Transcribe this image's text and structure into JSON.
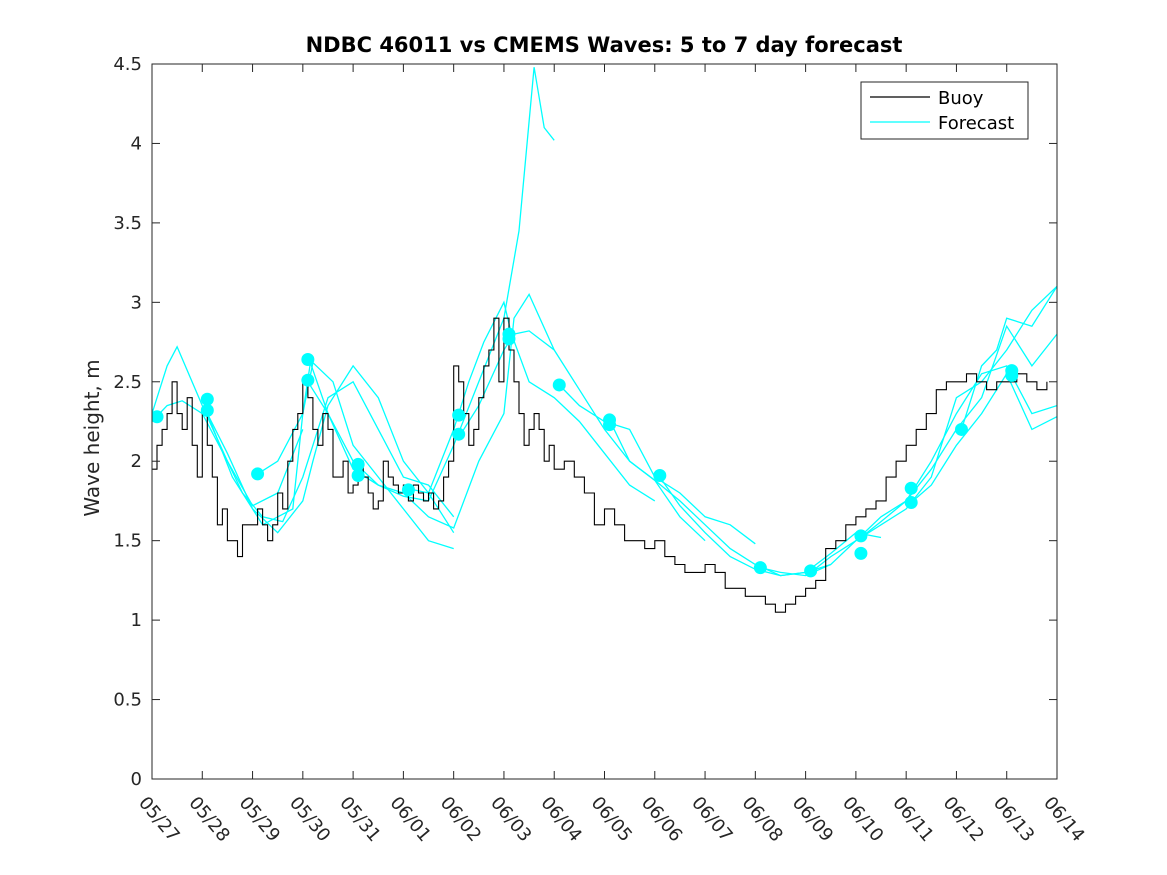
{
  "chart_data": {
    "type": "line",
    "title": "NDBC 46011 vs CMEMS Waves: 5 to 7 day forecast",
    "xlabel": "",
    "ylabel": "Wave height, m",
    "xlim": [
      "05/27",
      "06/14"
    ],
    "ylim": [
      0,
      4.5
    ],
    "y_ticks": [
      0,
      0.5,
      1,
      1.5,
      2,
      2.5,
      3,
      3.5,
      4,
      4.5
    ],
    "x_tick_labels": [
      "05/27",
      "05/28",
      "05/29",
      "05/30",
      "05/31",
      "06/01",
      "06/02",
      "06/03",
      "06/04",
      "06/05",
      "06/06",
      "06/07",
      "06/08",
      "06/09",
      "06/10",
      "06/11",
      "06/12",
      "06/13",
      "06/14"
    ],
    "grid": false,
    "legend": {
      "position": "top-right",
      "entries": [
        "Buoy",
        "Forecast"
      ]
    },
    "colors": {
      "buoy": "#000000",
      "forecast": "#00ffff",
      "axes": "#262626"
    },
    "series": [
      {
        "name": "Buoy",
        "x": [
          0,
          0.1,
          0.2,
          0.3,
          0.4,
          0.5,
          0.6,
          0.7,
          0.8,
          0.9,
          1.0,
          1.1,
          1.2,
          1.3,
          1.4,
          1.5,
          1.6,
          1.7,
          1.8,
          1.9,
          2.0,
          2.1,
          2.2,
          2.3,
          2.4,
          2.5,
          2.6,
          2.7,
          2.8,
          2.9,
          3.0,
          3.1,
          3.2,
          3.3,
          3.4,
          3.5,
          3.6,
          3.7,
          3.8,
          3.9,
          4.0,
          4.1,
          4.2,
          4.3,
          4.4,
          4.5,
          4.6,
          4.7,
          4.8,
          4.9,
          5.0,
          5.1,
          5.2,
          5.3,
          5.4,
          5.5,
          5.6,
          5.7,
          5.8,
          5.9,
          6.0,
          6.1,
          6.2,
          6.3,
          6.4,
          6.5,
          6.6,
          6.7,
          6.8,
          6.9,
          7.0,
          7.1,
          7.2,
          7.3,
          7.4,
          7.5,
          7.6,
          7.7,
          7.8,
          7.9,
          8.0,
          8.2,
          8.4,
          8.6,
          8.8,
          9.0,
          9.2,
          9.4,
          9.6,
          9.8,
          10.0,
          10.2,
          10.4,
          10.6,
          10.8,
          11.0,
          11.2,
          11.4,
          11.6,
          11.8,
          12.0,
          12.2,
          12.4,
          12.6,
          12.8,
          13.0,
          13.2,
          13.4,
          13.6,
          13.8,
          14.0,
          14.2,
          14.4,
          14.6,
          14.8,
          15.0,
          15.2,
          15.4,
          15.6,
          15.8,
          16.0,
          16.2,
          16.4,
          16.6,
          16.8,
          17.0,
          17.2,
          17.4,
          17.6,
          17.8
        ],
        "y": [
          1.95,
          2.1,
          2.2,
          2.3,
          2.5,
          2.3,
          2.2,
          2.4,
          2.1,
          1.9,
          2.3,
          2.1,
          1.9,
          1.6,
          1.7,
          1.5,
          1.5,
          1.4,
          1.6,
          1.6,
          1.6,
          1.7,
          1.6,
          1.5,
          1.6,
          1.8,
          1.7,
          2.0,
          2.2,
          2.3,
          2.5,
          2.4,
          2.2,
          2.1,
          2.3,
          2.2,
          1.9,
          1.9,
          2.0,
          1.8,
          1.85,
          2.0,
          1.9,
          1.8,
          1.7,
          1.75,
          2.0,
          1.9,
          1.85,
          1.8,
          1.85,
          1.75,
          1.85,
          1.8,
          1.75,
          1.8,
          1.7,
          1.75,
          1.9,
          2.0,
          2.6,
          2.5,
          2.3,
          2.1,
          2.2,
          2.4,
          2.6,
          2.7,
          2.9,
          2.5,
          2.9,
          2.7,
          2.5,
          2.3,
          2.1,
          2.2,
          2.3,
          2.2,
          2.0,
          2.1,
          1.95,
          2.0,
          1.9,
          1.8,
          1.6,
          1.7,
          1.6,
          1.5,
          1.5,
          1.45,
          1.5,
          1.4,
          1.35,
          1.3,
          1.3,
          1.35,
          1.3,
          1.2,
          1.2,
          1.15,
          1.15,
          1.1,
          1.05,
          1.1,
          1.15,
          1.2,
          1.25,
          1.45,
          1.5,
          1.6,
          1.65,
          1.7,
          1.75,
          1.9,
          2.0,
          2.1,
          2.2,
          2.3,
          2.45,
          2.5,
          2.5,
          2.55,
          2.5,
          2.45,
          2.5,
          2.5,
          2.55,
          2.5,
          2.45,
          2.5
        ]
      },
      {
        "name": "Forecast",
        "lines": [
          {
            "x": [
              0,
              0.3,
              0.5,
              1.0,
              1.5,
              2.0,
              2.5,
              3.0
            ],
            "y": [
              2.3,
              2.6,
              2.72,
              2.35,
              2.0,
              1.72,
              1.8,
              2.2
            ]
          },
          {
            "x": [
              0,
              0.3,
              0.6,
              1.0,
              1.5,
              1.8,
              2.2,
              2.6,
              3.0,
              3.2,
              3.5,
              4.0,
              4.5,
              5.0,
              5.5,
              6.0
            ],
            "y": [
              2.25,
              2.35,
              2.38,
              2.3,
              2.0,
              1.8,
              1.65,
              1.62,
              1.9,
              2.1,
              2.4,
              2.5,
              2.2,
              1.9,
              1.85,
              1.65
            ]
          },
          {
            "x": [
              1.1,
              1.5,
              2.0,
              2.5,
              3.0,
              3.2,
              3.5,
              4.0,
              4.5,
              5.0,
              5.5,
              6.0
            ],
            "y": [
              2.3,
              2.05,
              1.7,
              1.55,
              1.75,
              2.0,
              2.35,
              2.6,
              2.4,
              2.0,
              1.8,
              1.55
            ]
          },
          {
            "x": [
              1.1,
              1.6,
              2.2,
              2.8,
              3.0,
              3.2,
              3.6,
              4.0,
              4.5,
              5.0,
              5.5,
              6.0
            ],
            "y": [
              2.3,
              1.9,
              1.6,
              1.7,
              2.3,
              2.62,
              2.5,
              2.1,
              1.9,
              1.7,
              1.5,
              1.45
            ]
          },
          {
            "x": [
              2.1,
              2.5,
              3.0,
              3.15,
              3.5,
              4.0,
              4.5,
              5.0,
              5.5,
              6.0,
              6.5,
              7.0,
              7.2,
              7.5,
              8.0
            ],
            "y": [
              1.92,
              2.0,
              2.3,
              2.62,
              2.3,
              1.95,
              1.85,
              1.8,
              1.65,
              1.58,
              2.0,
              2.3,
              2.9,
              3.05,
              2.7
            ]
          },
          {
            "x": [
              3.1,
              3.5,
              4.0,
              4.5,
              5.0,
              5.5,
              6.0,
              6.5,
              7.0,
              7.3,
              7.6,
              7.8,
              8.0
            ],
            "y": [
              2.5,
              2.3,
              2.0,
              1.85,
              1.78,
              1.75,
              2.1,
              2.5,
              2.9,
              3.45,
              4.48,
              4.1,
              4.02
            ]
          },
          {
            "x": [
              5.2,
              5.5,
              6.0,
              6.3,
              6.6,
              7.0,
              7.15,
              7.5,
              8.0,
              8.5,
              9.0,
              9.5,
              10.0
            ],
            "y": [
              1.82,
              1.8,
              2.2,
              2.5,
              2.75,
              3.0,
              2.8,
              2.5,
              2.4,
              2.25,
              2.05,
              1.85,
              1.75
            ]
          },
          {
            "x": [
              6.1,
              6.5,
              7.0,
              7.2,
              7.5,
              8.0,
              8.5,
              9.0,
              9.5,
              10.0,
              10.5,
              11.0
            ],
            "y": [
              2.15,
              2.35,
              2.7,
              2.8,
              2.82,
              2.7,
              2.45,
              2.2,
              2.0,
              1.88,
              1.65,
              1.5
            ]
          },
          {
            "x": [
              8.1,
              8.5,
              9.0,
              9.5,
              10.0,
              10.5,
              11.0,
              11.5,
              12.0
            ],
            "y": [
              2.48,
              2.35,
              2.25,
              2.2,
              1.9,
              1.8,
              1.65,
              1.6,
              1.48
            ]
          },
          {
            "x": [
              9.1,
              9.5,
              10.0,
              10.5,
              11.0,
              11.5,
              12.0,
              12.5,
              13.0,
              13.5
            ],
            "y": [
              2.26,
              2.0,
              1.88,
              1.75,
              1.6,
              1.45,
              1.35,
              1.28,
              1.3,
              1.35
            ]
          },
          {
            "x": [
              10.1,
              10.5,
              11.0,
              11.5,
              12.0,
              12.5,
              13.0,
              13.5,
              14.0,
              14.5
            ],
            "y": [
              1.9,
              1.72,
              1.55,
              1.4,
              1.32,
              1.28,
              1.3,
              1.42,
              1.55,
              1.52
            ]
          },
          {
            "x": [
              12.1,
              12.5,
              13.0,
              13.5,
              14.0,
              14.5,
              15.0,
              15.5,
              16.0,
              16.5,
              17.0,
              17.5,
              18.0
            ],
            "y": [
              1.33,
              1.3,
              1.28,
              1.35,
              1.5,
              1.6,
              1.7,
              1.9,
              2.4,
              2.5,
              2.7,
              2.95,
              3.1
            ]
          },
          {
            "x": [
              13.1,
              13.5,
              14.0,
              14.5,
              15.0,
              15.5,
              16.0,
              16.5,
              17.0,
              17.5,
              18.0
            ],
            "y": [
              1.3,
              1.4,
              1.5,
              1.65,
              1.75,
              2.0,
              2.3,
              2.55,
              2.6,
              2.3,
              2.35
            ]
          },
          {
            "x": [
              14.1,
              14.5,
              15.0,
              15.5,
              16.0,
              16.5,
              17.0,
              17.5,
              18.0
            ],
            "y": [
              1.52,
              1.62,
              1.75,
              1.95,
              2.2,
              2.4,
              2.85,
              2.6,
              2.8
            ]
          },
          {
            "x": [
              15.1,
              15.5,
              16.0,
              16.5,
              17.0,
              17.5,
              18.0
            ],
            "y": [
              1.74,
              1.85,
              2.1,
              2.3,
              2.55,
              2.2,
              2.28
            ]
          },
          {
            "x": [
              16.1,
              16.5,
              16.8,
              17.0,
              17.5,
              18.0
            ],
            "y": [
              2.2,
              2.6,
              2.7,
              2.9,
              2.85,
              3.1
            ]
          }
        ],
        "markers": {
          "x": [
            0.1,
            1.1,
            1.1,
            2.1,
            3.1,
            3.1,
            4.1,
            4.1,
            5.1,
            6.1,
            6.1,
            7.1,
            7.1,
            8.1,
            9.1,
            9.1,
            10.1,
            12.1,
            13.1,
            14.1,
            14.1,
            15.1,
            15.1,
            16.1,
            17.1,
            17.1
          ],
          "y": [
            2.28,
            2.39,
            2.32,
            1.92,
            2.64,
            2.51,
            1.98,
            1.91,
            1.82,
            2.29,
            2.17,
            2.8,
            2.77,
            2.48,
            2.26,
            2.23,
            1.91,
            1.33,
            1.31,
            1.53,
            1.42,
            1.83,
            1.74,
            2.2,
            2.57,
            2.54
          ]
        }
      }
    ]
  }
}
